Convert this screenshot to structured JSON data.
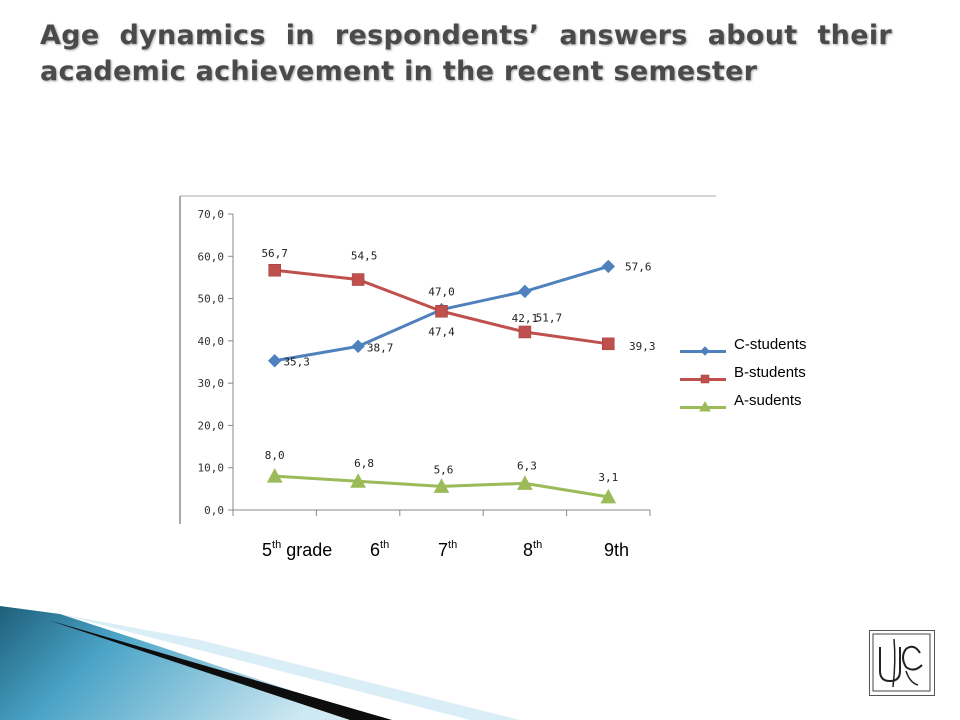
{
  "slide": {
    "title": "Age dynamics in respondents’ answers about their academic achievement in the recent semester"
  },
  "chart_data": {
    "type": "line",
    "categories": [
      {
        "main": "5",
        "sup": "th",
        "suffix": " grade"
      },
      {
        "main": "6",
        "sup": "th",
        "suffix": ""
      },
      {
        "main": "7",
        "sup": "th",
        "suffix": ""
      },
      {
        "main": "8",
        "sup": "th",
        "suffix": ""
      },
      {
        "main": "9th",
        "sup": "",
        "suffix": ""
      }
    ],
    "yticks": [
      "70,0",
      "60,0",
      "50,0",
      "40,0",
      "30,0",
      "20,0",
      "10,0",
      "0,0"
    ],
    "ylim": [
      0,
      70
    ],
    "ytick_step": 10,
    "grid": false,
    "legend_position": "right",
    "series": [
      {
        "name": "C-students",
        "color": "#4f81bd",
        "marker": "diamond",
        "values": [
          35.3,
          38.7,
          47.4,
          51.7,
          57.6
        ],
        "labels": [
          "35,3",
          "38,7",
          "47,4",
          "51,7",
          "57,6"
        ]
      },
      {
        "name": "B-students",
        "color": "#c0504d",
        "marker": "square",
        "values": [
          56.7,
          54.5,
          47.0,
          42.1,
          39.3
        ],
        "labels": [
          "56,7",
          "54,5",
          "47,0",
          "42,1",
          "39,3"
        ]
      },
      {
        "name": "A-sudents",
        "color": "#9bbb59",
        "marker": "triangle",
        "values": [
          8.0,
          6.8,
          5.6,
          6.3,
          3.1
        ],
        "labels": [
          "8,0",
          "6,8",
          "5,6",
          "6,3",
          "3,1"
        ]
      }
    ]
  },
  "logo": {
    "icon": "university-monogram-icon"
  }
}
